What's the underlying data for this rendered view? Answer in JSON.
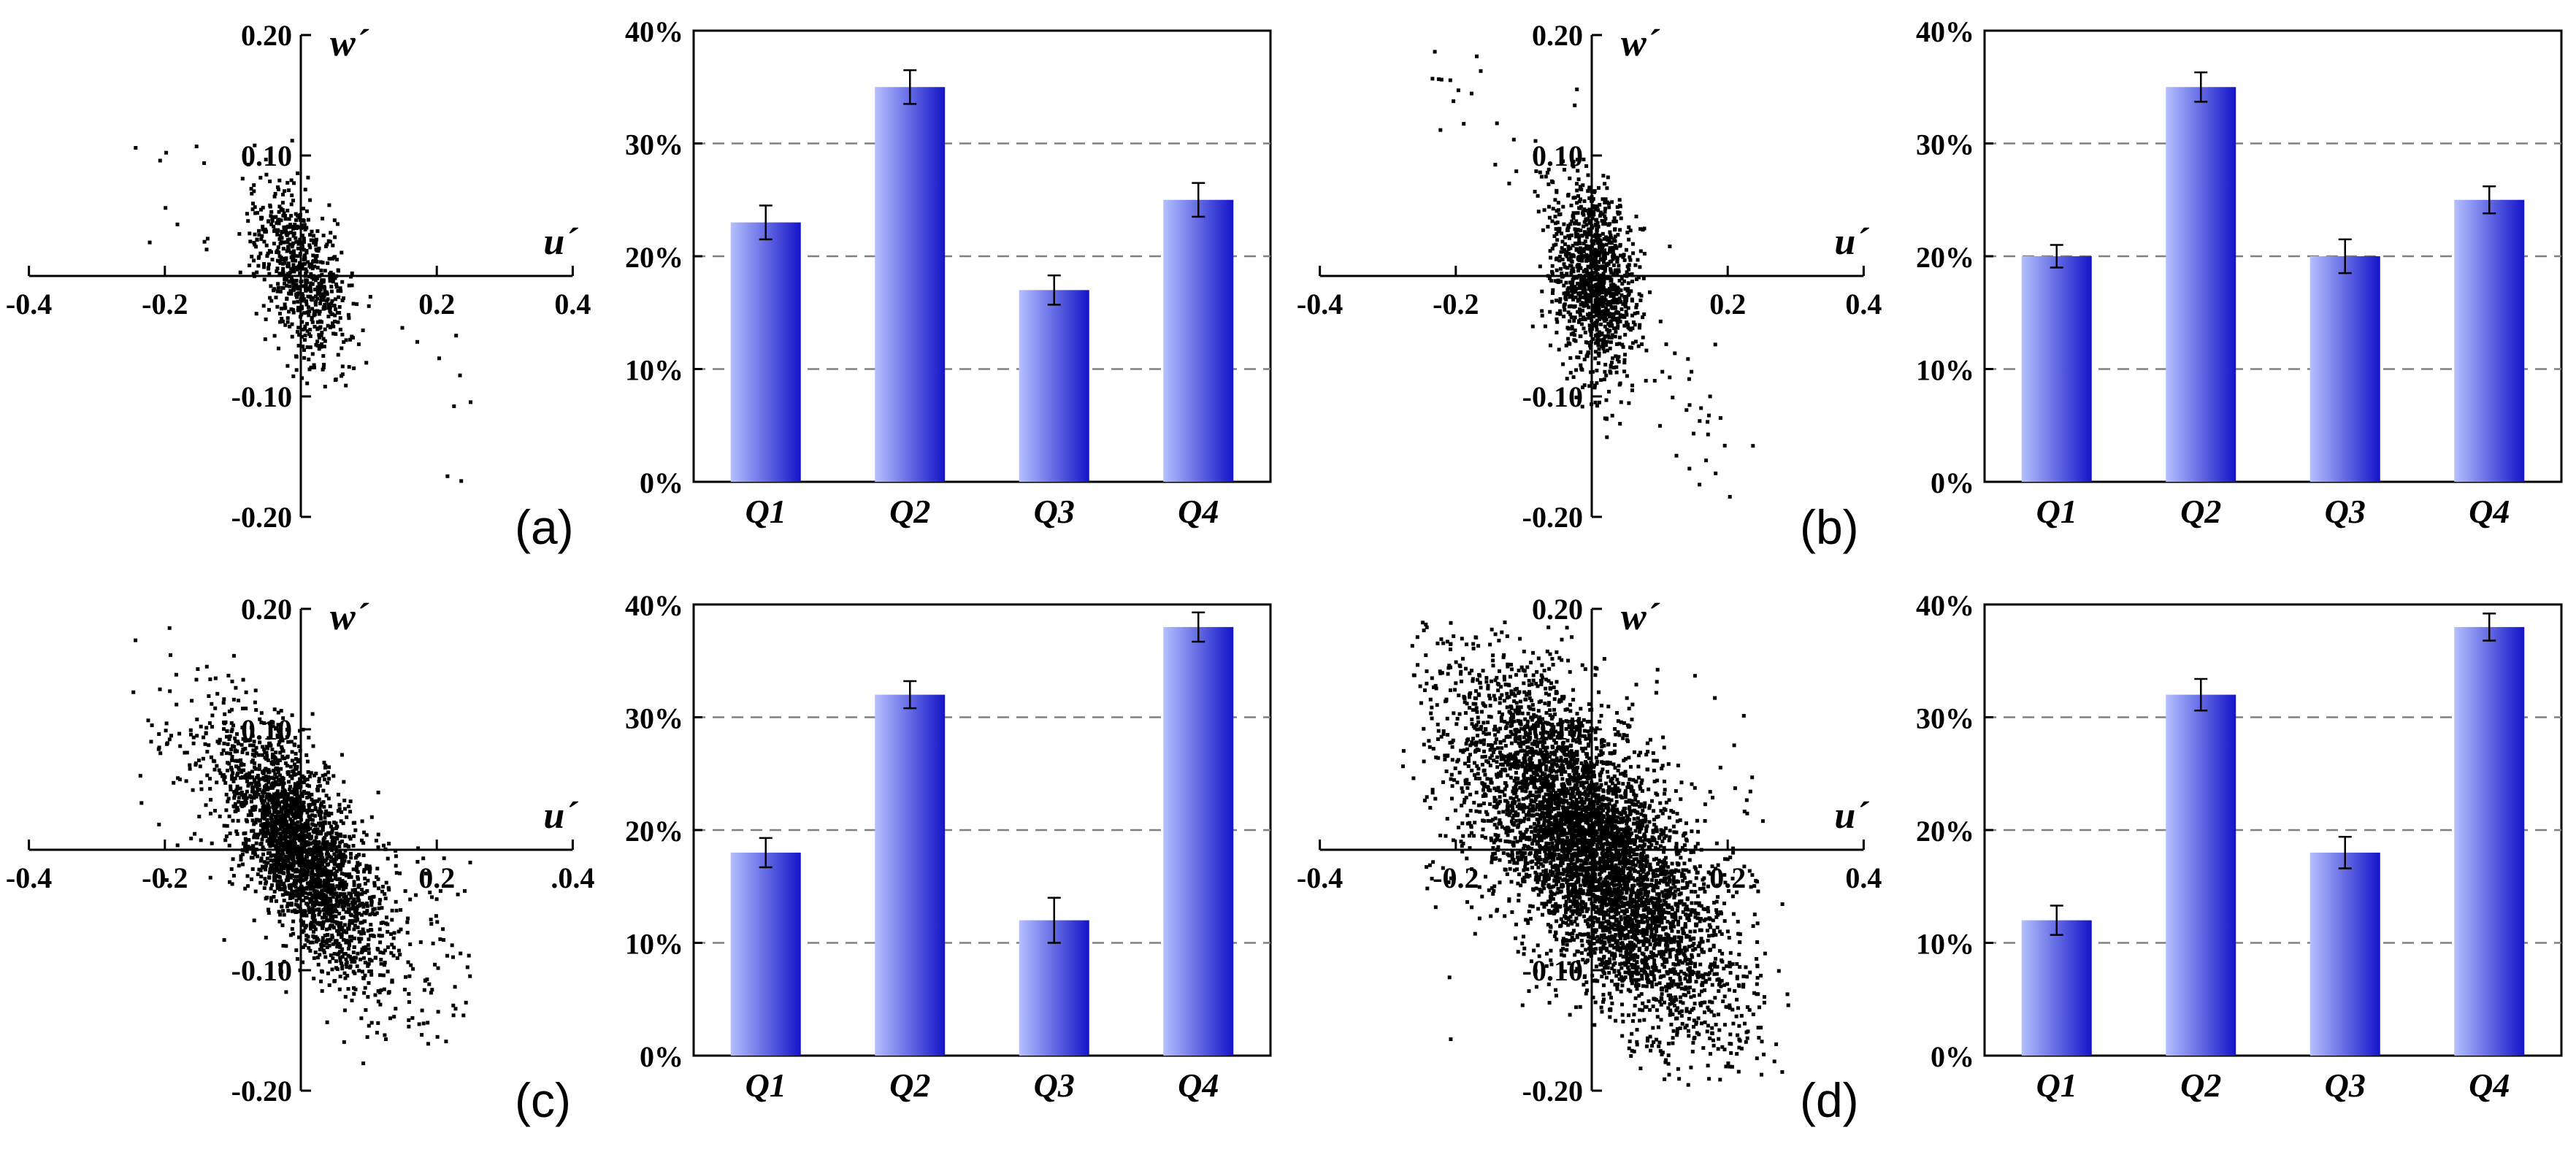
{
  "panel_labels": [
    "(a)",
    "(b)",
    "(c)",
    "(d)"
  ],
  "scatter_axis": {
    "u_label": "u´",
    "w_label": "w´"
  },
  "colors": {
    "bar_light": "#b4c0ff",
    "bar_dark": "#1414c8",
    "grid": "#808080",
    "points": "#000000"
  },
  "chart_data": [
    {
      "panel": "(a)",
      "scatter": {
        "type": "scatter",
        "xlabel": "u´",
        "ylabel": "w´",
        "xlim": [
          -0.4,
          0.4
        ],
        "ylim": [
          -0.2,
          0.2
        ],
        "x_ticks": [
          "-0.4",
          "-0.2",
          "0.2",
          "0.4"
        ],
        "y_ticks": [
          "0.20",
          "0.10",
          "-0.10",
          "-0.20"
        ],
        "cloud": {
          "n": 700,
          "cov": [
            [
              0.0012,
              -0.0006
            ],
            [
              -0.0006,
              0.0014
            ]
          ],
          "tail_slope": -0.9,
          "spread": 0.022
        }
      },
      "bar": {
        "type": "bar",
        "categories": [
          "Q1",
          "Q2",
          "Q3",
          "Q4"
        ],
        "values": [
          23,
          35,
          17,
          25
        ],
        "errors": [
          1.5,
          1.5,
          1.3,
          1.5
        ],
        "ylim": [
          0,
          40
        ],
        "y_ticks": [
          "0%",
          "10%",
          "20%",
          "30%",
          "40%"
        ]
      }
    },
    {
      "panel": "(b)",
      "scatter": {
        "type": "scatter",
        "xlabel": "u´",
        "ylabel": "w´",
        "xlim": [
          -0.4,
          0.4
        ],
        "ylim": [
          -0.2,
          0.2
        ],
        "x_ticks": [
          "-0.4",
          "-0.2",
          "0.2",
          "0.4"
        ],
        "y_ticks": [
          "0.20",
          "0.10",
          "-0.10",
          "-0.20"
        ],
        "cloud": {
          "n": 1200,
          "cov": [
            [
              0.001,
              -0.0003
            ],
            [
              -0.0003,
              0.0016
            ]
          ],
          "tail_slope": -1.6,
          "spread": 0.02
        }
      },
      "bar": {
        "type": "bar",
        "categories": [
          "Q1",
          "Q2",
          "Q3",
          "Q4"
        ],
        "values": [
          20,
          35,
          20,
          25
        ],
        "errors": [
          1.0,
          1.3,
          1.5,
          1.2
        ],
        "ylim": [
          0,
          40
        ],
        "y_ticks": [
          "0%",
          "10%",
          "20%",
          "30%",
          "40%"
        ]
      }
    },
    {
      "panel": "(c)",
      "scatter": {
        "type": "scatter",
        "xlabel": "u´",
        "ylabel": "w´",
        "xlim": [
          -0.4,
          0.4
        ],
        "ylim": [
          -0.2,
          0.2
        ],
        "x_ticks": [
          "-0.4",
          "-0.2",
          "0.2",
          ".0.4"
        ],
        "y_ticks": [
          "0.20",
          "0.10",
          "-0.10",
          "-0.20"
        ],
        "cloud": {
          "n": 2600,
          "cov": [
            [
              0.0035,
              -0.0022
            ],
            [
              -0.0022,
              0.0028
            ]
          ],
          "tail_slope": -0.8,
          "spread": 0.03
        }
      },
      "bar": {
        "type": "bar",
        "categories": [
          "Q1",
          "Q2",
          "Q3",
          "Q4"
        ],
        "values": [
          18,
          32,
          12,
          38
        ],
        "errors": [
          1.3,
          1.2,
          2.0,
          1.3
        ],
        "ylim": [
          0,
          40
        ],
        "y_ticks": [
          "0%",
          "10%",
          "20%",
          "30%",
          "40%"
        ]
      }
    },
    {
      "panel": "(d)",
      "scatter": {
        "type": "scatter",
        "xlabel": "u´",
        "ylabel": "w´",
        "xlim": [
          -0.4,
          0.4
        ],
        "ylim": [
          -0.2,
          0.2
        ],
        "x_ticks": [
          "-0.4",
          "-0.2",
          "0.2",
          "0.4"
        ],
        "y_ticks": [
          "0.20",
          "0.10",
          "-0.10",
          "-0.20"
        ],
        "cloud": {
          "n": 5200,
          "cov": [
            [
              0.0085,
              -0.0046
            ],
            [
              -0.0046,
              0.0052
            ]
          ],
          "tail_slope": -0.55,
          "spread": 0.045
        }
      },
      "bar": {
        "type": "bar",
        "categories": [
          "Q1",
          "Q2",
          "Q3",
          "Q4"
        ],
        "values": [
          12,
          32,
          18,
          38
        ],
        "errors": [
          1.3,
          1.4,
          1.4,
          1.2
        ],
        "ylim": [
          0,
          40
        ],
        "y_ticks": [
          "0%",
          "10%",
          "20%",
          "30%",
          "40%"
        ]
      }
    }
  ]
}
